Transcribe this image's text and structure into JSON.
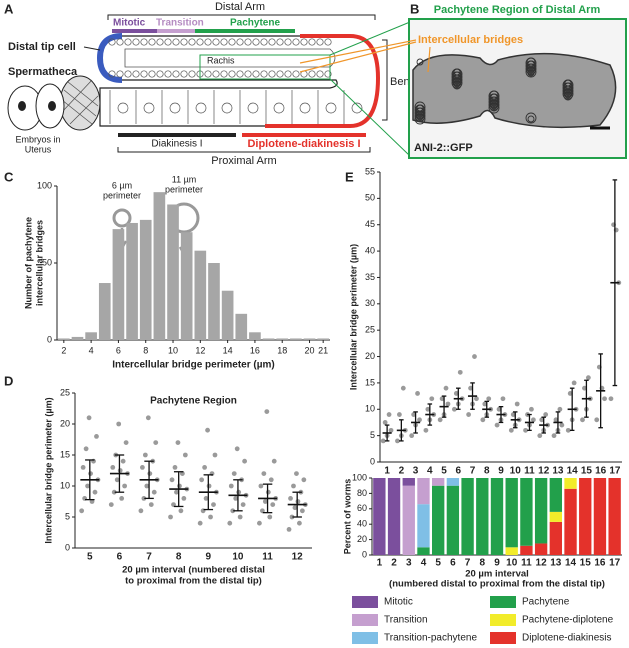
{
  "panel_labels": [
    "A",
    "B",
    "C",
    "D",
    "E"
  ],
  "diagram": {
    "distal_arm": "Distal Arm",
    "stages": [
      "Mitotic",
      "Transition",
      "Pachytene"
    ],
    "distal_tip_cell": "Distal tip cell",
    "spermatheca": "Spermatheca",
    "rachis": "Rachis",
    "bend": "Bend",
    "embryos": [
      "Embryos in",
      "Uterus"
    ],
    "diakinesis": "Diakinesis I",
    "diplotene_diakinesis": "Diplotene-diakinesis I",
    "proximal_arm": "Proximal Arm"
  },
  "micrograph": {
    "title": "Pachytene Region of Distal Arm",
    "annotation": "Intercellular bridges",
    "label": "ANI-2::GFP"
  },
  "chart_data": [
    {
      "type": "histogram",
      "xlabel": "Intercellular bridge perimeter (µm)",
      "ylabel": [
        "Number of pachytene",
        "intercellular bridges"
      ],
      "bins": [
        1.5,
        2.5,
        3.5,
        4.5,
        5.5,
        6.5,
        7.5,
        8.5,
        9.5,
        10.5,
        11.5,
        12.5,
        13.5,
        14.5,
        15.5,
        16.5,
        17.5,
        18.5,
        19.5,
        20.5,
        21.5
      ],
      "values": [
        1,
        2,
        5,
        37,
        72,
        76,
        78,
        96,
        88,
        70,
        58,
        50,
        32,
        17,
        5,
        1,
        1,
        1,
        1,
        1
      ],
      "color": "#a6a6a6",
      "xlim": [
        1.5,
        21.5
      ],
      "xticks": [
        2,
        4,
        6,
        8,
        10,
        12,
        14,
        16,
        18,
        20,
        21
      ],
      "ylim": [
        0,
        100
      ],
      "yticks": [
        0,
        50,
        100
      ],
      "annotations": [
        [
          "6 µm",
          "perimeter"
        ],
        [
          "11 µm",
          "perimeter"
        ]
      ]
    },
    {
      "type": "dotplot",
      "title": "Pachytene Region",
      "xlabel": [
        "20 µm interval (numbered distal",
        "to proximal from the distal tip)"
      ],
      "ylabel": "Intercellular bridge perimeter (µm)",
      "categories": [
        "5",
        "6",
        "7",
        "8",
        "9",
        "10",
        "11",
        "12"
      ],
      "points": [
        [
          6,
          7.5,
          8,
          9,
          10,
          11,
          12,
          13,
          14,
          16,
          18,
          21
        ],
        [
          7,
          8,
          9,
          10,
          11,
          12,
          12.5,
          13,
          14,
          15,
          17,
          20
        ],
        [
          6,
          7,
          8,
          9,
          10,
          11,
          12,
          13,
          14,
          15,
          17,
          21
        ],
        [
          5,
          6,
          7,
          8,
          9,
          9.5,
          10,
          11,
          12,
          13,
          15,
          17
        ],
        [
          4,
          5,
          6,
          7,
          8,
          9,
          10,
          11,
          12,
          13,
          15,
          19
        ],
        [
          4,
          5,
          6,
          7,
          8,
          8.5,
          9,
          10,
          11,
          12,
          14,
          16
        ],
        [
          4,
          5,
          6,
          7,
          7.5,
          8,
          9,
          10,
          11,
          12,
          14,
          22
        ],
        [
          3,
          4,
          5,
          6,
          6.5,
          7,
          7.5,
          8,
          9,
          10,
          11,
          12
        ]
      ],
      "means": [
        11,
        12,
        11,
        9.5,
        9,
        8.5,
        8,
        7
      ],
      "sd": [
        3.2,
        3,
        3,
        2.8,
        2.8,
        2.5,
        2.3,
        2
      ],
      "color": "#9a9a9a",
      "ylim": [
        0,
        25
      ],
      "yticks": [
        0,
        5,
        10,
        15,
        20,
        25
      ]
    },
    {
      "type": "dotplot",
      "ylabel": "Intercellular bridge perimeter (µm)",
      "categories": [
        "1",
        "2",
        "3",
        "4",
        "5",
        "6",
        "7",
        "8",
        "9",
        "10",
        "11",
        "12",
        "13",
        "14",
        "15",
        "16",
        "17"
      ],
      "points": [
        [
          4,
          5,
          6,
          7.5,
          9
        ],
        [
          4,
          5,
          6,
          9,
          14
        ],
        [
          5,
          7,
          8,
          9,
          13
        ],
        [
          6,
          8,
          9,
          10,
          12
        ],
        [
          8,
          9,
          11,
          12,
          14
        ],
        [
          10,
          11,
          12,
          13,
          17
        ],
        [
          9,
          11,
          12,
          14,
          20
        ],
        [
          8,
          9,
          10,
          11,
          12
        ],
        [
          7,
          8,
          9,
          10,
          12
        ],
        [
          6,
          7,
          8,
          9,
          11
        ],
        [
          6,
          7,
          8,
          9,
          10
        ],
        [
          5,
          6,
          7,
          8,
          9
        ],
        [
          5,
          6,
          7,
          8,
          10
        ],
        [
          6,
          8,
          10,
          13,
          15
        ],
        [
          8,
          10,
          12,
          14,
          16
        ],
        [
          8,
          12,
          14,
          18
        ],
        [
          12,
          34,
          44,
          45
        ]
      ],
      "means": [
        5.5,
        6,
        7.5,
        9,
        10.5,
        12,
        12.5,
        10,
        9,
        8,
        7.5,
        7,
        7.5,
        10,
        12,
        13.5,
        34
      ],
      "sd": [
        1.5,
        2,
        2,
        2,
        2,
        2,
        2.5,
        1.5,
        1.5,
        1.5,
        1.5,
        1.5,
        2,
        4,
        3.5,
        7,
        19.5
      ],
      "color": "#9a9a9a",
      "ylim": [
        0,
        55
      ],
      "yticks": [
        0,
        5,
        10,
        15,
        20,
        25,
        30,
        35,
        40,
        45,
        50,
        55
      ]
    },
    {
      "type": "stacked_bar",
      "ylabel": "Percent of worms",
      "xlabel": [
        "20 µm interval",
        "(numbered distal to proximal from the distal tip)"
      ],
      "categories": [
        "1",
        "2",
        "3",
        "4",
        "5",
        "6",
        "7",
        "8",
        "9",
        "10",
        "11",
        "12",
        "13",
        "14",
        "15",
        "16",
        "17"
      ],
      "series": [
        {
          "name": "Diplotene-diakinesis",
          "color": "#e4322b",
          "values": [
            0,
            0,
            0,
            0,
            0,
            0,
            0,
            0,
            0,
            0,
            12,
            15,
            43,
            86,
            100,
            100,
            100
          ]
        },
        {
          "name": "Pachytene-diplotene",
          "color": "#f2ec2a",
          "values": [
            0,
            0,
            0,
            0,
            0,
            0,
            0,
            0,
            0,
            10,
            0,
            0,
            13,
            14,
            0,
            0,
            0
          ]
        },
        {
          "name": "Pachytene",
          "color": "#22a04b",
          "values": [
            0,
            0,
            0,
            10,
            90,
            90,
            100,
            100,
            100,
            90,
            88,
            85,
            44,
            0,
            0,
            0,
            0
          ]
        },
        {
          "name": "Transition-pachytene",
          "color": "#7fbfe6",
          "values": [
            0,
            0,
            0,
            56,
            0,
            10,
            0,
            0,
            0,
            0,
            0,
            0,
            0,
            0,
            0,
            0,
            0
          ]
        },
        {
          "name": "Transition",
          "color": "#c59fcf",
          "values": [
            0,
            0,
            90,
            34,
            10,
            0,
            0,
            0,
            0,
            0,
            0,
            0,
            0,
            0,
            0,
            0,
            0
          ]
        },
        {
          "name": "Mitotic",
          "color": "#7b4f9d",
          "values": [
            100,
            100,
            10,
            0,
            0,
            0,
            0,
            0,
            0,
            0,
            0,
            0,
            0,
            0,
            0,
            0,
            0
          ]
        }
      ],
      "ylim": [
        0,
        100
      ],
      "yticks": [
        0,
        20,
        40,
        60,
        80,
        100
      ]
    }
  ]
}
